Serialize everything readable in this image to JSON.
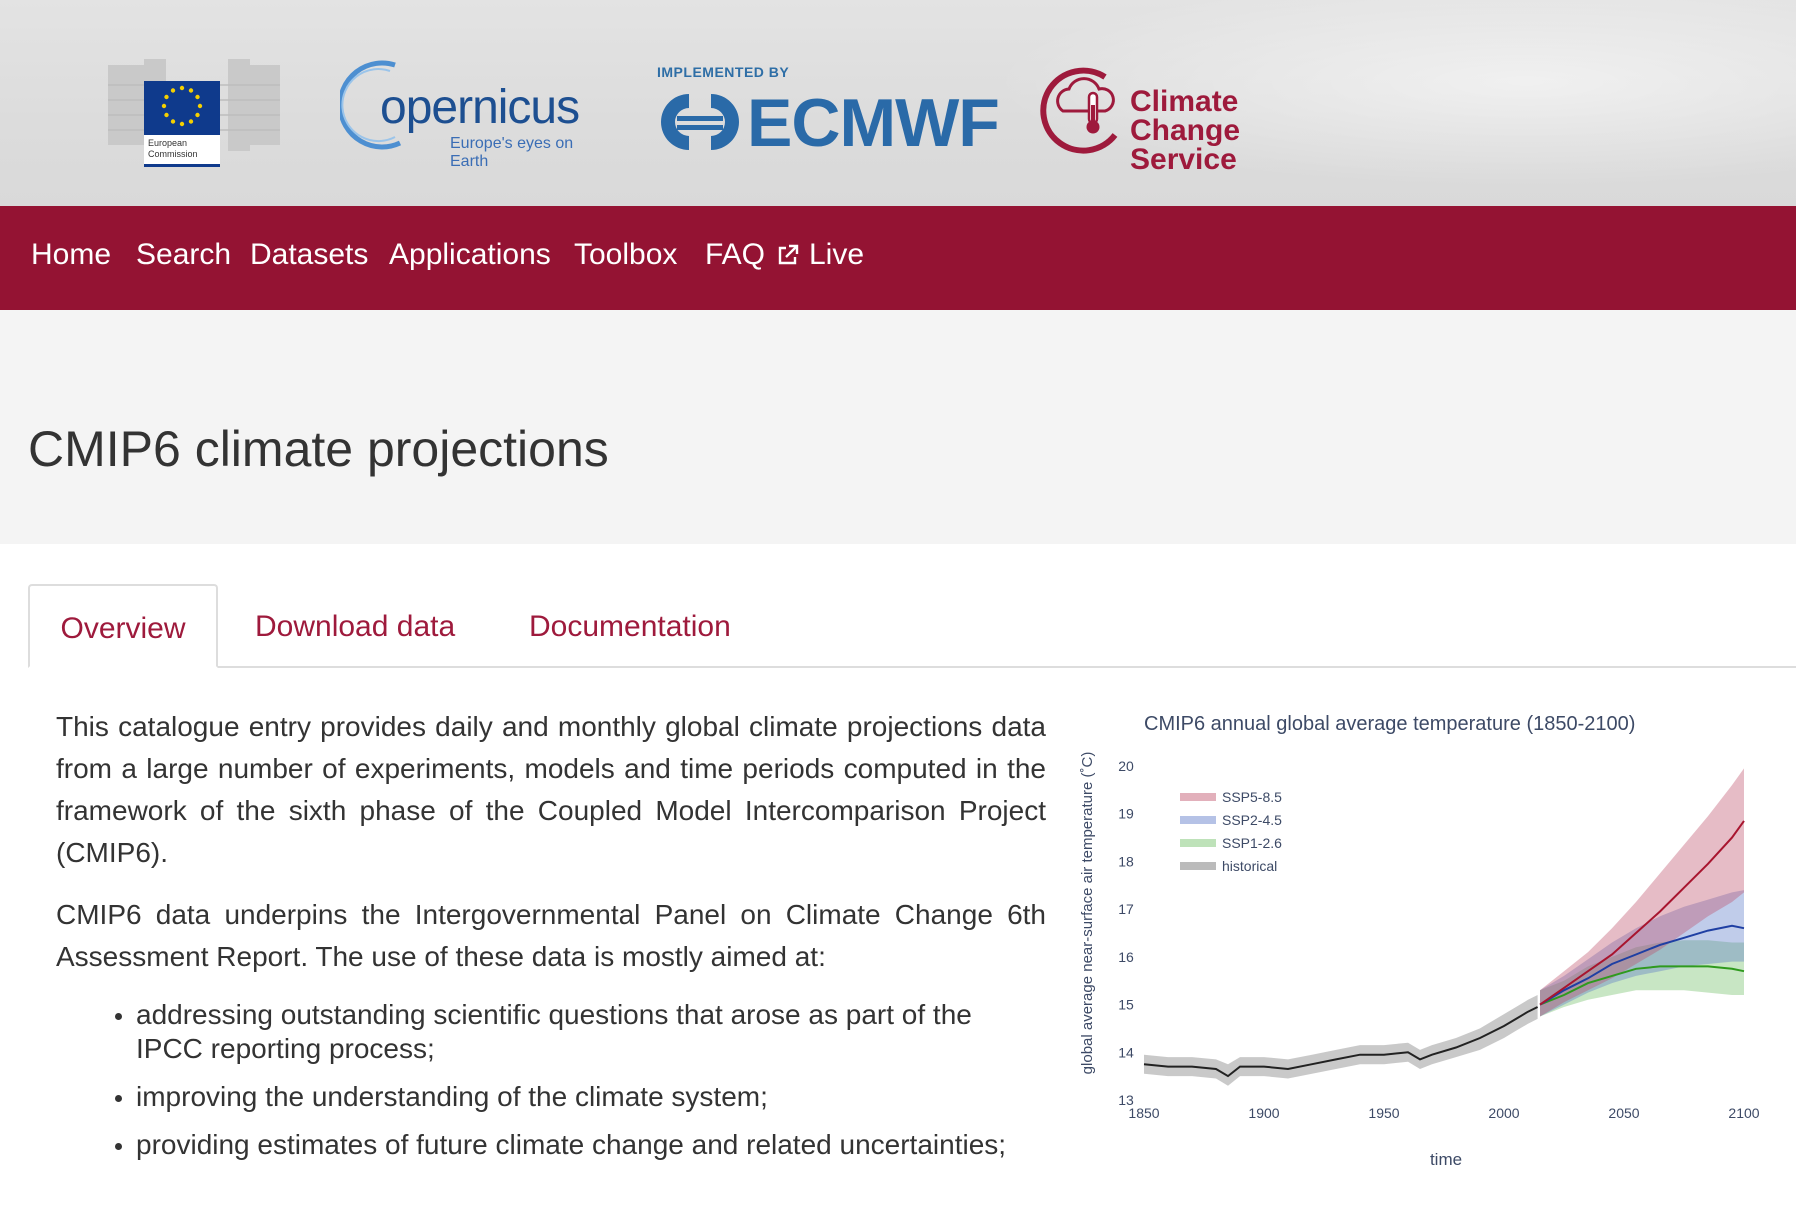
{
  "header": {
    "ec_logo_text": [
      "European",
      "Commission"
    ],
    "copernicus_name": "opernicus",
    "copernicus_tagline": "Europe's eyes on Earth",
    "ecmwf_implemented_by": "IMPLEMENTED BY",
    "ecmwf_name": "ECMWF",
    "c3s_line1": "Climate Change",
    "c3s_line2": "Service"
  },
  "nav": {
    "items": [
      "Home",
      "Search",
      "Datasets",
      "Applications",
      "Toolbox",
      "FAQ",
      "Live"
    ]
  },
  "page_title": "CMIP6 climate projections",
  "tabs": [
    "Overview",
    "Download data",
    "Documentation"
  ],
  "content": {
    "p1": "This catalogue entry provides daily and monthly global climate projections data from a large number of experiments, models and time periods computed in the framework of the sixth phase of the Coupled Model Intercomparison Project (CMIP6).",
    "p2": "CMIP6 data underpins the Intergovernmental Panel on Climate Change 6th Assessment Report. The use of these data is mostly aimed at:",
    "bullets": [
      "addressing outstanding scientific questions that arose as part of the IPCC reporting process;",
      "improving the understanding of the climate system;",
      "providing estimates of future climate change and related uncertainties;"
    ]
  },
  "colors": {
    "nav_bg": "#941333",
    "tab_text": "#9e1a3c",
    "ssp585": "#a8152f",
    "ssp245": "#1f3fa3",
    "ssp126": "#2f9a1e",
    "historical": "#222222"
  },
  "chart_data": {
    "type": "line",
    "title": "CMIP6 annual global average temperature (1850-2100)",
    "xlabel": "time",
    "ylabel": "global average near-surface air temperature (˚C)",
    "xlim": [
      1850,
      2100
    ],
    "ylim": [
      13,
      20
    ],
    "xticks": [
      1850,
      1900,
      1950,
      2000,
      2050,
      2100
    ],
    "yticks": [
      13,
      14,
      15,
      16,
      17,
      18,
      19,
      20
    ],
    "legend_position": "top-left",
    "series": [
      {
        "name": "SSP5-8.5",
        "x": [
          2015,
          2025,
          2035,
          2045,
          2055,
          2065,
          2075,
          2085,
          2095,
          2100
        ],
        "values": [
          15.0,
          15.35,
          15.7,
          16.05,
          16.5,
          16.95,
          17.45,
          17.95,
          18.5,
          18.85
        ],
        "band_low": [
          14.75,
          15.05,
          15.3,
          15.55,
          15.85,
          16.15,
          16.5,
          16.85,
          17.15,
          17.35
        ],
        "band_high": [
          15.3,
          15.7,
          16.1,
          16.6,
          17.15,
          17.75,
          18.35,
          18.95,
          19.6,
          19.95
        ]
      },
      {
        "name": "SSP2-4.5",
        "x": [
          2015,
          2025,
          2035,
          2045,
          2055,
          2065,
          2075,
          2085,
          2095,
          2100
        ],
        "values": [
          15.0,
          15.3,
          15.55,
          15.85,
          16.05,
          16.25,
          16.4,
          16.55,
          16.65,
          16.6
        ],
        "band_low": [
          14.75,
          15.0,
          15.25,
          15.45,
          15.6,
          15.7,
          15.8,
          15.85,
          15.9,
          15.9
        ],
        "band_high": [
          15.3,
          15.6,
          15.95,
          16.3,
          16.6,
          16.85,
          17.05,
          17.2,
          17.35,
          17.4
        ]
      },
      {
        "name": "SSP1-2.6",
        "x": [
          2015,
          2025,
          2035,
          2045,
          2055,
          2065,
          2075,
          2085,
          2095,
          2100
        ],
        "values": [
          15.0,
          15.2,
          15.45,
          15.6,
          15.75,
          15.8,
          15.8,
          15.8,
          15.75,
          15.7
        ],
        "band_low": [
          14.75,
          14.95,
          15.1,
          15.2,
          15.3,
          15.3,
          15.3,
          15.25,
          15.2,
          15.2
        ],
        "band_high": [
          15.3,
          15.5,
          15.8,
          16.0,
          16.2,
          16.3,
          16.35,
          16.35,
          16.3,
          16.3
        ]
      },
      {
        "name": "historical",
        "x": [
          1850,
          1860,
          1870,
          1880,
          1885,
          1890,
          1900,
          1910,
          1920,
          1930,
          1940,
          1950,
          1960,
          1965,
          1970,
          1980,
          1990,
          2000,
          2005,
          2010,
          2014
        ],
        "values": [
          13.75,
          13.7,
          13.7,
          13.65,
          13.5,
          13.7,
          13.7,
          13.65,
          13.75,
          13.85,
          13.95,
          13.95,
          14.0,
          13.85,
          13.95,
          14.1,
          14.3,
          14.55,
          14.7,
          14.85,
          14.95
        ],
        "band_low": [
          13.55,
          13.5,
          13.5,
          13.45,
          13.3,
          13.5,
          13.5,
          13.45,
          13.55,
          13.65,
          13.75,
          13.75,
          13.8,
          13.65,
          13.75,
          13.9,
          14.05,
          14.3,
          14.45,
          14.6,
          14.7
        ],
        "band_high": [
          13.95,
          13.9,
          13.9,
          13.85,
          13.75,
          13.9,
          13.9,
          13.85,
          13.95,
          14.05,
          14.15,
          14.15,
          14.2,
          14.05,
          14.15,
          14.3,
          14.5,
          14.8,
          14.95,
          15.1,
          15.2
        ]
      }
    ]
  }
}
